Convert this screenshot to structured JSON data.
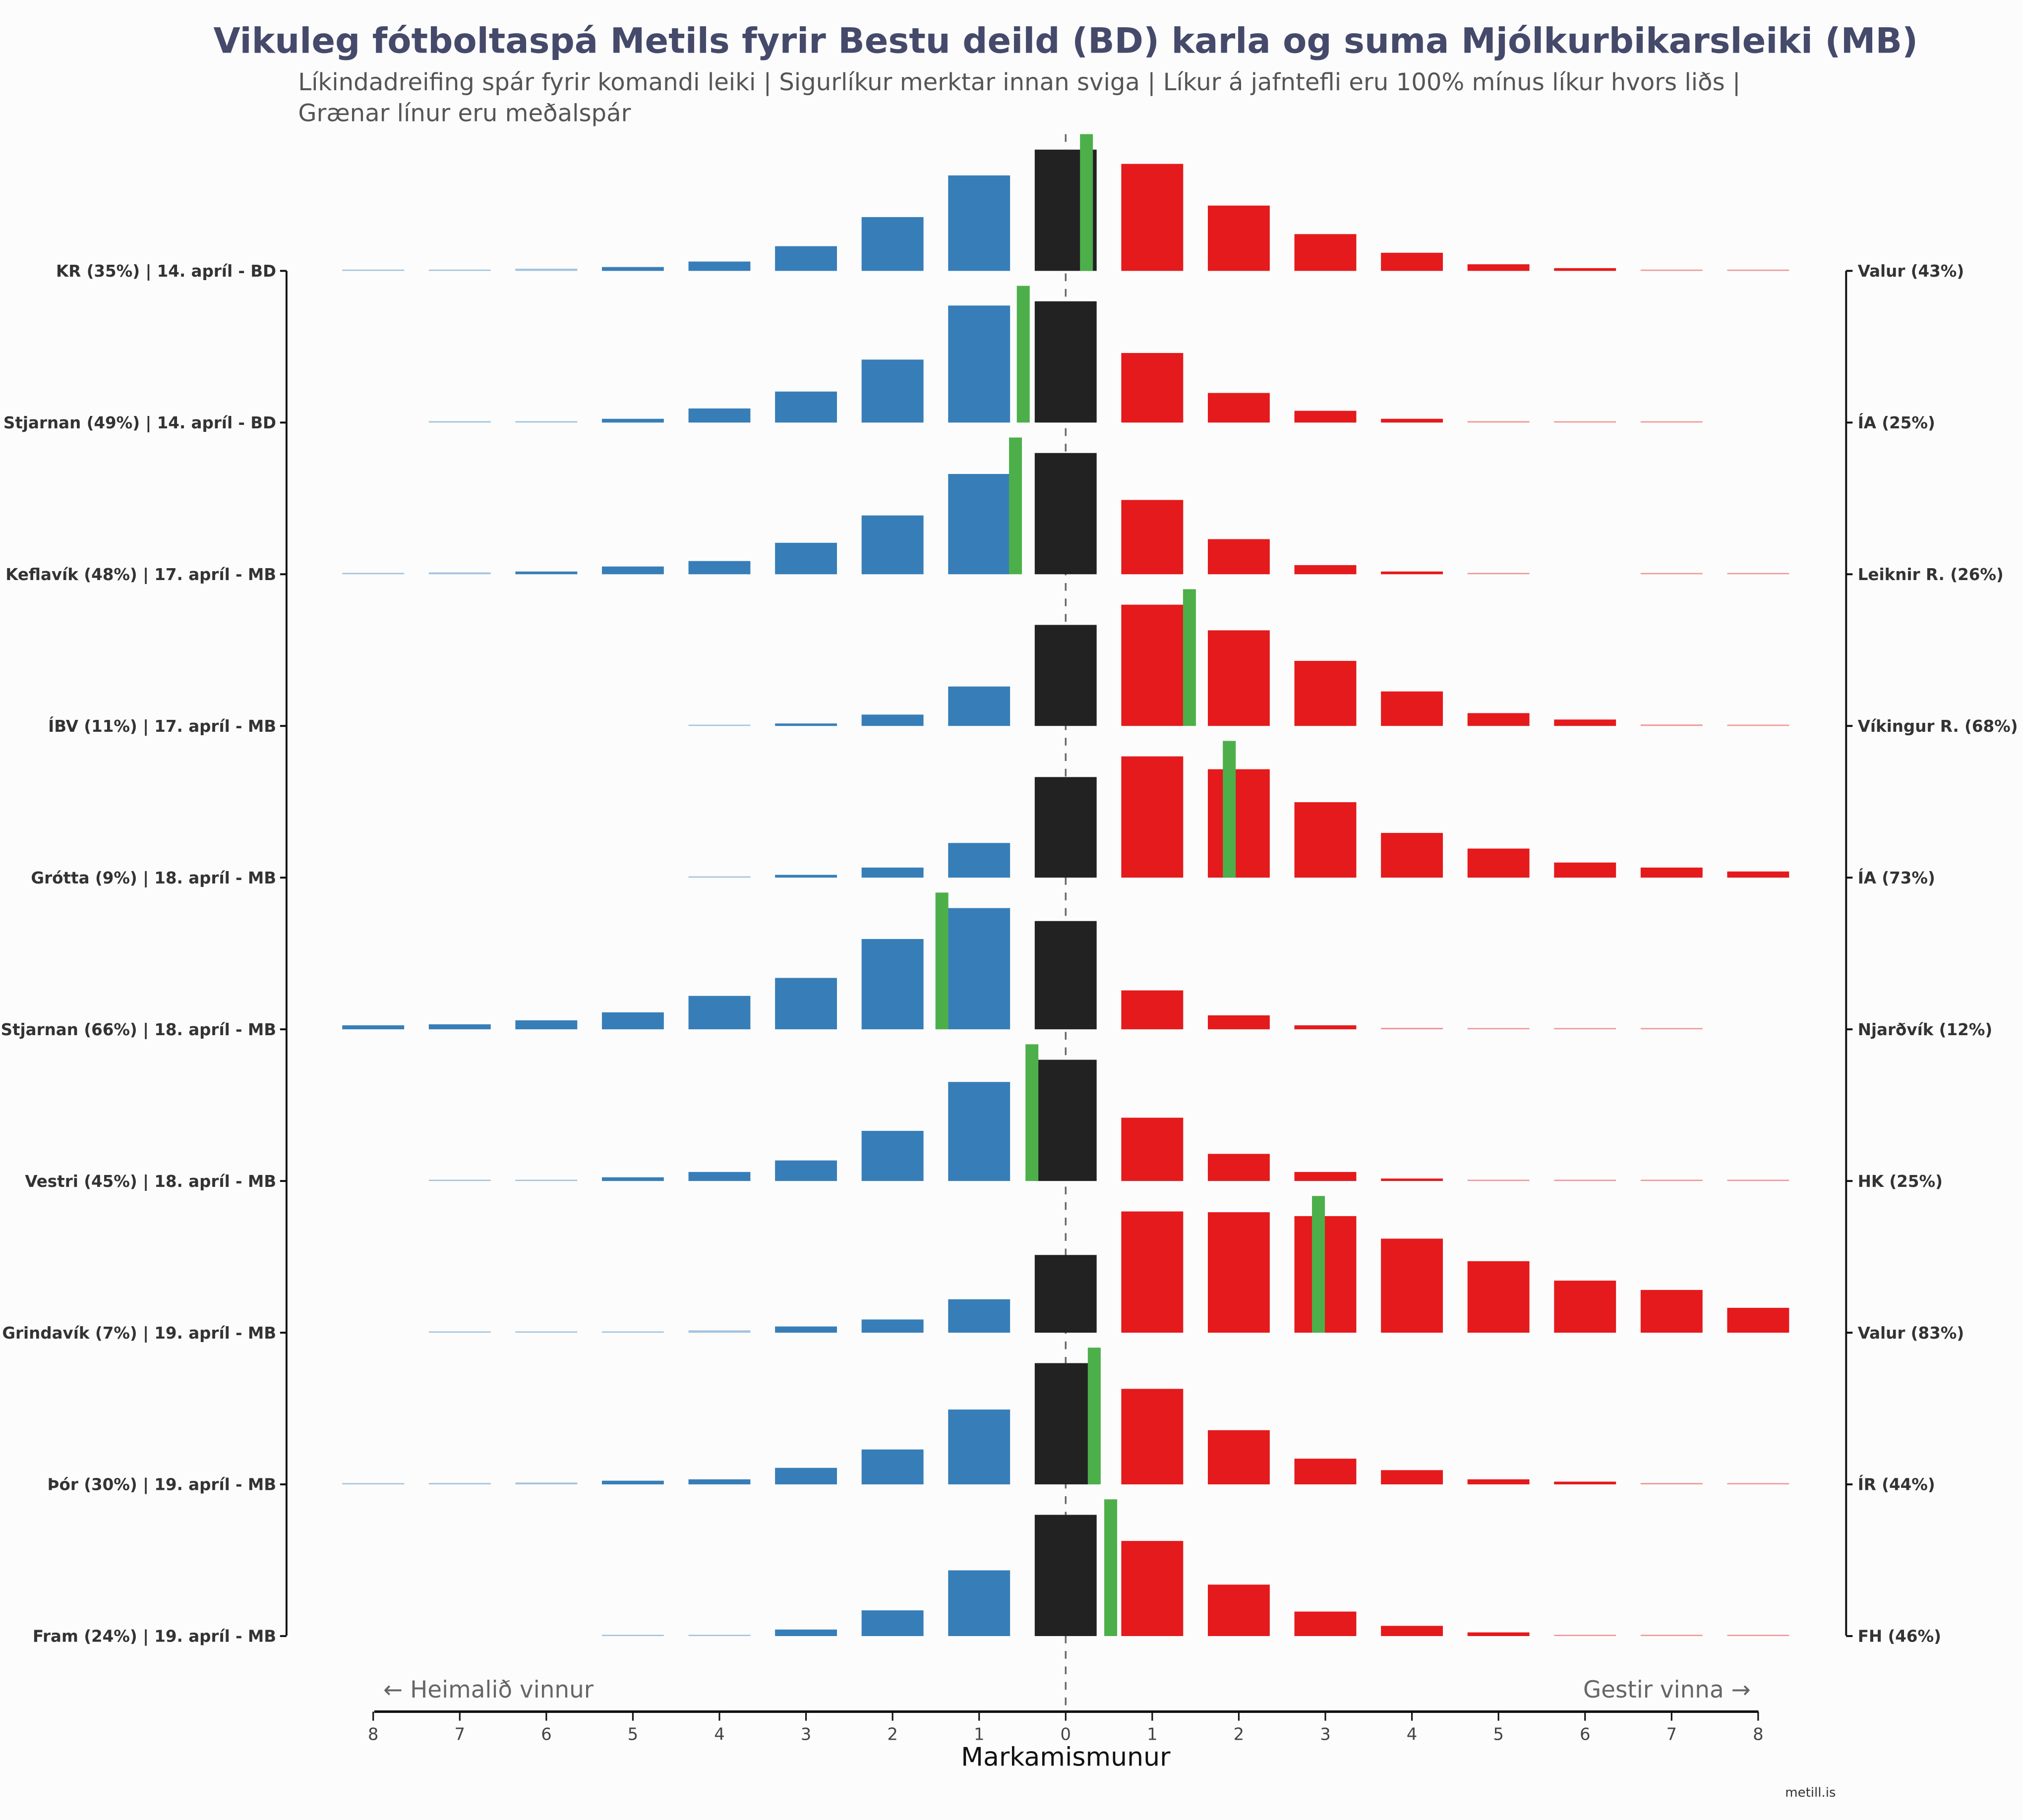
{
  "title": "Vikuleg fótboltaspá Metils fyrir Bestu deild (BD) karla og suma Mjólkurbikarsleiki (MB)",
  "subtitle_lines": [
    "Líkindadreifing spár fyrir komandi leiki | Sigurlíkur merktar innan sviga | Líkur á jafntefli eru 100% mínus líkur hvors liðs |",
    "Grænar línur eru meðalspár"
  ],
  "footer": "metill.is",
  "colors": {
    "home": "#377eb8",
    "draw": "#222222",
    "away": "#e41a1c",
    "mean": "#4daf4a",
    "title": "#454a6b"
  },
  "chart_data": {
    "type": "bar",
    "xlabel": "Markamismunur",
    "x_categories": [
      -8,
      -7,
      -6,
      -5,
      -4,
      -3,
      -2,
      -1,
      0,
      1,
      2,
      3,
      4,
      5,
      6,
      7,
      8
    ],
    "tick_labels": [
      "8",
      "7",
      "6",
      "5",
      "4",
      "3",
      "2",
      "1",
      "0",
      "1",
      "2",
      "3",
      "4",
      "5",
      "6",
      "7",
      "8"
    ],
    "xlim": [
      -8,
      8
    ],
    "annotations": {
      "left": "← Heimalið vinnur",
      "right": "Gestir vinna →"
    },
    "grid": false,
    "rows": [
      {
        "home_label": "KR (35%) | 14. apríl - BD",
        "away_label": "Valur (43%)",
        "mean": 0.24,
        "values": [
          0.1,
          0.2,
          0.4,
          0.7,
          1.7,
          4.5,
          9.8,
          17.4,
          22.1,
          19.5,
          11.9,
          6.7,
          3.3,
          1.2,
          0.5,
          0.2,
          0.1
        ]
      },
      {
        "home_label": "Stjarnan (49%) | 14. apríl - BD",
        "away_label": "ÍA (25%)",
        "mean": -0.49,
        "values": [
          0,
          0.3,
          0.3,
          0.8,
          3.0,
          6.6,
          13.4,
          24.9,
          25.8,
          14.8,
          6.3,
          2.5,
          0.8,
          0.3,
          0.1,
          0.1,
          0
        ]
      },
      {
        "home_label": "Keflavík (48%) | 17. apríl - MB",
        "away_label": "Leiknir R. (26%)",
        "mean": -0.58,
        "values": [
          0.3,
          0.4,
          0.6,
          1.7,
          2.9,
          6.9,
          12.9,
          22.0,
          26.6,
          16.3,
          7.7,
          2.0,
          0.6,
          0.3,
          0,
          0.1,
          0.1
        ]
      },
      {
        "home_label": "ÍBV (11%) | 17. apríl - MB",
        "away_label": "Víkingur R. (68%)",
        "mean": 1.43,
        "values": [
          0,
          0,
          0,
          0,
          0.1,
          0.5,
          2.3,
          8.0,
          20.5,
          24.6,
          19.4,
          13.2,
          7.0,
          2.6,
          1.3,
          0.3,
          0.1
        ]
      },
      {
        "home_label": "Grótta (9%) | 18. apríl - MB",
        "away_label": "ÍA (73%)",
        "mean": 1.89,
        "values": [
          0,
          0,
          0,
          0,
          0.1,
          0.5,
          1.8,
          6.2,
          18.0,
          21.7,
          19.4,
          13.5,
          8.0,
          5.2,
          2.7,
          1.8,
          1.1
        ]
      },
      {
        "home_label": "Stjarnan (66%) | 18. apríl - MB",
        "away_label": "Njarðvík (12%)",
        "mean": -1.43,
        "values": [
          0.8,
          1.0,
          1.8,
          3.4,
          6.7,
          10.3,
          18.1,
          24.3,
          21.7,
          7.8,
          2.8,
          0.8,
          0.3,
          0.1,
          0.1,
          0.1,
          0
        ]
      },
      {
        "home_label": "Vestri (45%) | 18. apríl - MB",
        "away_label": "HK (25%)",
        "mean": -0.39,
        "values": [
          0,
          0.3,
          0.3,
          0.9,
          2.2,
          5.0,
          12.2,
          24.1,
          29.5,
          15.4,
          6.6,
          2.2,
          0.6,
          0.3,
          0.2,
          0.1,
          0.1
        ]
      },
      {
        "home_label": "Grindavík (7%) | 19. apríl - MB",
        "away_label": "Valur (83%)",
        "mean": 2.92,
        "values": [
          0,
          0.05,
          0.1,
          0.1,
          0.3,
          0.8,
          1.7,
          4.3,
          10.0,
          15.6,
          15.5,
          15.0,
          12.1,
          9.2,
          6.7,
          5.5,
          3.2
        ]
      },
      {
        "home_label": "Þór (30%) | 19. apríl - MB",
        "away_label": "ÍR (44%)",
        "mean": 0.33,
        "values": [
          0.1,
          0.3,
          0.4,
          0.8,
          1.1,
          3.6,
          7.6,
          16.3,
          26.4,
          20.8,
          11.8,
          5.6,
          3.1,
          1.1,
          0.6,
          0.3,
          0.1
        ]
      },
      {
        "home_label": "Fram (24%) | 19. apríl - MB",
        "away_label": "FH (46%)",
        "mean": 0.52,
        "values": [
          0,
          0,
          0,
          0.1,
          0.3,
          1.6,
          6.3,
          16.1,
          29.7,
          23.3,
          12.6,
          6.0,
          2.5,
          0.9,
          0.3,
          0.2,
          0.2
        ]
      }
    ]
  }
}
